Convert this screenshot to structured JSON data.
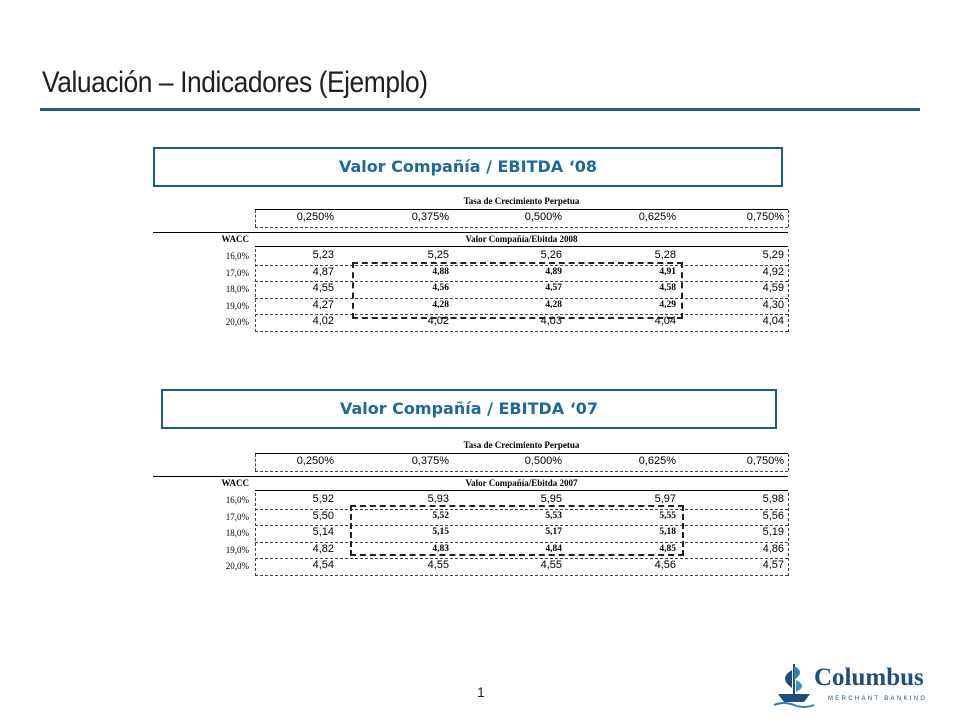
{
  "title": "Valuación – Indicadores (Ejemplo)",
  "page_number": "1",
  "logo": {
    "name": "Columbus",
    "subtitle": "MERCHANT BANKING"
  },
  "tables": [
    {
      "section_title": "Valor Compañía / EBITDA ‘08",
      "growth_header": "Tasa de Crecimiento Perpetua",
      "growth_rates": [
        "0,250%",
        "0,375%",
        "0,500%",
        "0,625%",
        "0,750%"
      ],
      "wacc_label": "WACC",
      "value_header": "Valor Compañía/Ebitda 2008",
      "rows": [
        {
          "wacc": "16,0%",
          "values": [
            "5,23",
            "5,25",
            "5,26",
            "5,28",
            "5,29"
          ]
        },
        {
          "wacc": "17,0%",
          "values": [
            "4,87",
            "4,88",
            "4,89",
            "4,91",
            "4,92"
          ]
        },
        {
          "wacc": "18,0%",
          "values": [
            "4,55",
            "4,56",
            "4,57",
            "4,58",
            "4,59"
          ]
        },
        {
          "wacc": "19,0%",
          "values": [
            "4,27",
            "4,28",
            "4,28",
            "4,29",
            "4,30"
          ]
        },
        {
          "wacc": "20,0%",
          "values": [
            "4,02",
            "4,02",
            "4,03",
            "4,04",
            "4,04"
          ]
        }
      ]
    },
    {
      "section_title": "Valor Compañía / EBITDA ‘07",
      "growth_header": "Tasa de Crecimiento Perpetua",
      "growth_rates": [
        "0,250%",
        "0,375%",
        "0,500%",
        "0,625%",
        "0,750%"
      ],
      "wacc_label": "WACC",
      "value_header": "Valor Compañía/Ebitda 2007",
      "rows": [
        {
          "wacc": "16,0%",
          "values": [
            "5,92",
            "5,93",
            "5,95",
            "5,97",
            "5,98"
          ]
        },
        {
          "wacc": "17,0%",
          "values": [
            "5,50",
            "5,52",
            "5,53",
            "5,55",
            "5,56"
          ]
        },
        {
          "wacc": "18,0%",
          "values": [
            "5,14",
            "5,15",
            "5,17",
            "5,18",
            "5,19"
          ]
        },
        {
          "wacc": "19,0%",
          "values": [
            "4,82",
            "4,83",
            "4,84",
            "4,85",
            "4,86"
          ]
        },
        {
          "wacc": "20,0%",
          "values": [
            "4,54",
            "4,55",
            "4,55",
            "4,56",
            "4,57"
          ]
        }
      ]
    }
  ]
}
